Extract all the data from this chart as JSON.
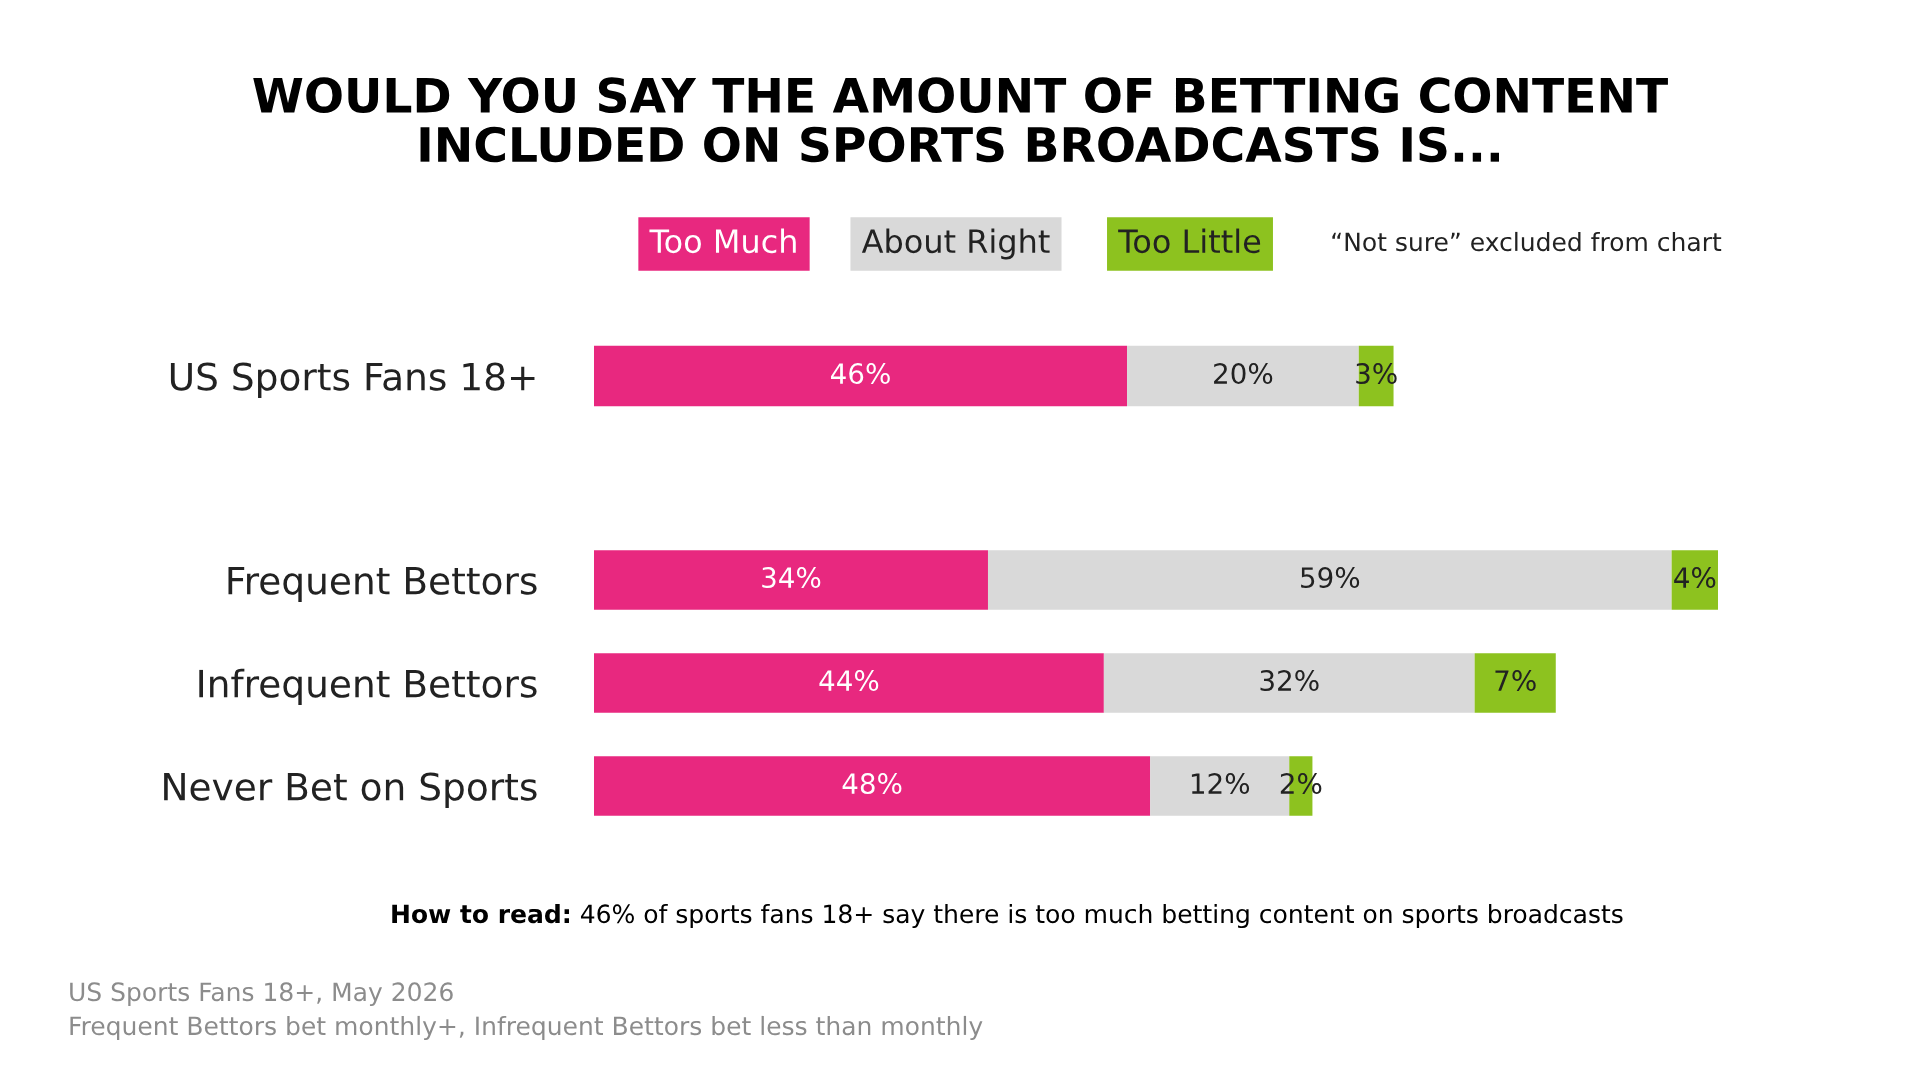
{
  "chart_data": [
    {
      "type": "bar",
      "orientation": "horizontal",
      "stacked": true,
      "title": "WOULD YOU SAY THE AMOUNT OF BETTING CONTENT\nINCLUDED ON SPORTS BROADCASTS IS...",
      "categories": [
        "US Sports Fans 18+"
      ],
      "series": [
        {
          "name": "Too Much",
          "color": "#e8287f",
          "values": [
            46
          ],
          "value_labels": [
            "46%"
          ]
        },
        {
          "name": "About Right",
          "color": "#d9d9d9",
          "values": [
            20
          ],
          "value_labels": [
            "20%"
          ]
        },
        {
          "name": "Too Little",
          "color": "#8dc21f",
          "values": [
            3
          ],
          "value_labels": [
            "3%"
          ]
        }
      ],
      "legend": "top",
      "annotations": [
        "“Not sure” excluded from chart"
      ]
    },
    {
      "type": "bar",
      "orientation": "horizontal",
      "stacked": true,
      "categories": [
        "Frequent Bettors",
        "Infrequent Bettors",
        "Never Bet on Sports"
      ],
      "series": [
        {
          "color": "#e8287f",
          "values": [
            34,
            44,
            48
          ],
          "value_labels": [
            "34%",
            "44%",
            "48%"
          ]
        },
        {
          "color": "#d9d9d9",
          "values": [
            59,
            32,
            12
          ],
          "value_labels": [
            "59%",
            "32%",
            "12%"
          ]
        },
        {
          "color": "#8dc21f",
          "values": [
            4,
            7,
            2
          ],
          "value_labels": [
            "4%",
            "7%",
            "2%"
          ]
        }
      ],
      "annotations": [
        "How to read: 46% of sports fans 18+ say there is too much betting content on sports broadcasts",
        "US Sports Fans 18+, May 2026",
        "Frequent Bettors bet monthly+, Infrequent Bettors bet less than monthly"
      ]
    }
  ]
}
